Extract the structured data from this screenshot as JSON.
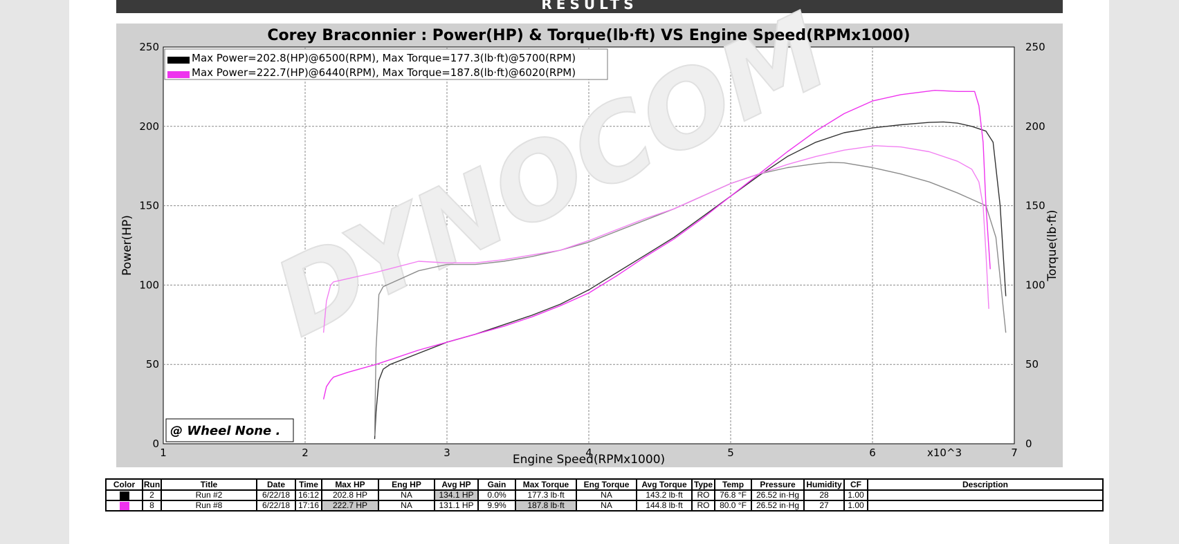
{
  "header": {
    "results_label": "RESULTS"
  },
  "chart_data": {
    "type": "line",
    "title": "Corey Braconnier : Power(HP) & Torque(lb·ft) VS Engine Speed(RPMx1000)",
    "xlabel": "Engine Speed(RPMx1000)",
    "ylabel_left": "Power(HP)",
    "ylabel_right": "Torque(lb·ft)",
    "x_multiplier_label": "x10^3",
    "xlim": [
      1,
      7
    ],
    "ylim": [
      0,
      250
    ],
    "x_ticks": [
      "1",
      "2",
      "3",
      "4",
      "5",
      "6",
      "7"
    ],
    "y_ticks": [
      "0",
      "50",
      "100",
      "150",
      "200",
      "250"
    ],
    "grid": true,
    "legend_position": "top-left",
    "watermark": "DYNOCOM",
    "badge": "@ Wheel None  .",
    "legend": [
      {
        "color": "#000000",
        "text": "Max Power=202.8(HP)@6500(RPM), Max Torque=177.3(lb·ft)@5700(RPM)"
      },
      {
        "color": "#ee33ee",
        "text": "Max Power=222.7(HP)@6440(RPM), Max Torque=187.8(lb·ft)@6020(RPM)"
      }
    ],
    "series": [
      {
        "name": "Run #2 Power",
        "color": "#333333",
        "x": [
          2.49,
          2.5,
          2.52,
          2.55,
          2.6,
          2.8,
          3.0,
          3.2,
          3.4,
          3.6,
          3.8,
          4.0,
          4.2,
          4.4,
          4.6,
          4.8,
          5.0,
          5.2,
          5.4,
          5.6,
          5.8,
          6.0,
          6.2,
          6.4,
          6.5,
          6.6,
          6.7,
          6.8,
          6.85,
          6.9,
          6.94
        ],
        "y": [
          3,
          20,
          40,
          47,
          50,
          57,
          64,
          69,
          75,
          81,
          88,
          97,
          108,
          119,
          130,
          143,
          156,
          169,
          181,
          190,
          196,
          199,
          201,
          202.5,
          202.8,
          202,
          200,
          197,
          190,
          150,
          93
        ]
      },
      {
        "name": "Run #2 Torque",
        "color": "#8c8c8c",
        "x": [
          2.49,
          2.5,
          2.52,
          2.55,
          2.6,
          2.8,
          3.0,
          3.2,
          3.4,
          3.6,
          3.8,
          4.0,
          4.2,
          4.4,
          4.6,
          4.8,
          5.0,
          5.2,
          5.4,
          5.6,
          5.7,
          5.8,
          6.0,
          6.2,
          6.4,
          6.6,
          6.75,
          6.8,
          6.87,
          6.94
        ],
        "y": [
          5,
          60,
          94,
          99,
          101,
          109,
          113,
          113,
          115,
          118,
          122,
          127,
          134,
          141,
          148,
          156,
          164,
          170,
          174,
          176.5,
          177.3,
          177,
          174,
          170,
          165,
          158,
          152,
          150,
          130,
          70
        ]
      },
      {
        "name": "Run #8 Power",
        "color": "#ee33ee",
        "x": [
          2.13,
          2.15,
          2.18,
          2.2,
          2.3,
          2.5,
          2.8,
          3.0,
          3.2,
          3.4,
          3.6,
          3.8,
          4.0,
          4.2,
          4.4,
          4.6,
          4.8,
          5.0,
          5.2,
          5.4,
          5.6,
          5.8,
          6.0,
          6.2,
          6.44,
          6.6,
          6.72,
          6.75,
          6.78,
          6.8,
          6.83
        ],
        "y": [
          28,
          36,
          40,
          42,
          45,
          50,
          59,
          64,
          69,
          74,
          80,
          87,
          95,
          106,
          118,
          129,
          142,
          156,
          170,
          184,
          197,
          208,
          216,
          220,
          222.7,
          222,
          222,
          213,
          190,
          150,
          110
        ]
      },
      {
        "name": "Run #8 Torque",
        "color": "#f280f2",
        "x": [
          2.13,
          2.15,
          2.18,
          2.2,
          2.3,
          2.5,
          2.8,
          3.0,
          3.2,
          3.4,
          3.6,
          3.8,
          4.0,
          4.2,
          4.4,
          4.6,
          4.8,
          5.0,
          5.2,
          5.4,
          5.6,
          5.8,
          6.02,
          6.2,
          6.4,
          6.6,
          6.7,
          6.75,
          6.78,
          6.8,
          6.82
        ],
        "y": [
          70,
          90,
          100,
          102,
          104,
          108,
          115,
          114,
          114,
          116,
          119,
          122,
          128,
          135,
          142,
          148,
          156,
          164,
          170,
          176,
          181,
          185,
          187.8,
          187,
          184,
          178,
          173,
          165,
          150,
          120,
          85
        ]
      }
    ]
  },
  "table": {
    "columns": [
      "Color",
      "Run",
      "Title",
      "Date",
      "Time",
      "Max HP",
      "Eng HP",
      "Avg HP",
      "Gain",
      "Max Torque",
      "Eng Torque",
      "Avg Torque",
      "Type",
      "Temp",
      "Pressure",
      "Humidity",
      "CF",
      "Description"
    ],
    "rows": [
      {
        "color": "#000000",
        "run": "2",
        "title": "Run #2",
        "date": "6/22/18",
        "time": "16:12",
        "max_hp": "202.8 HP",
        "eng_hp": "NA",
        "avg_hp": "134.1 HP",
        "gain": "0.0%",
        "max_torque": "177.3 lb·ft",
        "eng_torque": "NA",
        "avg_torque": "143.2 lb·ft",
        "type": "RO",
        "temp": "76.8 °F",
        "pressure": "26.52 in·Hg",
        "humidity": "28",
        "cf": "1.00",
        "description": ""
      },
      {
        "color": "#ee33ee",
        "run": "8",
        "title": "Run #8",
        "date": "6/22/18",
        "time": "17:16",
        "max_hp": "222.7 HP",
        "eng_hp": "NA",
        "avg_hp": "131.1 HP",
        "gain": "9.9%",
        "max_torque": "187.8 lb·ft",
        "eng_torque": "NA",
        "avg_torque": "144.8 lb·ft",
        "type": "RO",
        "temp": "80.0 °F",
        "pressure": "26.52 in·Hg",
        "humidity": "27",
        "cf": "1.00",
        "description": ""
      }
    ]
  }
}
